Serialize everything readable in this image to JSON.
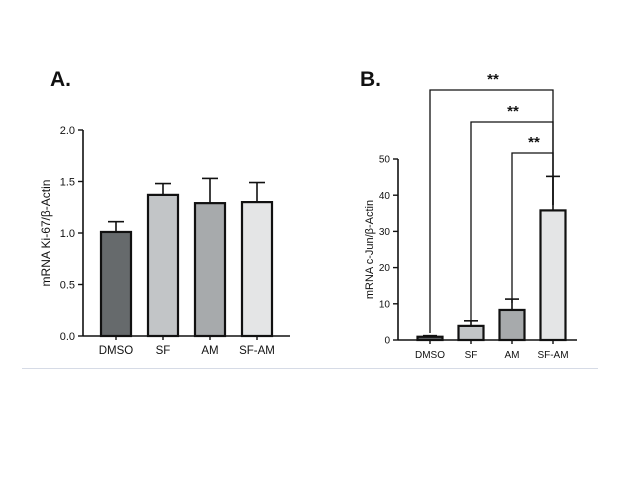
{
  "figure": {
    "panel_a_letter": "A.",
    "panel_b_letter": "B."
  },
  "chart_data": [
    {
      "type": "bar",
      "panel": "A.",
      "categories": [
        "DMSO",
        "SF",
        "AM",
        "SF-AM"
      ],
      "values": [
        1.01,
        1.37,
        1.29,
        1.3
      ],
      "errors": [
        0.1,
        0.11,
        0.24,
        0.19
      ],
      "colors": [
        "#666a6c",
        "#c2c5c7",
        "#a7aaac",
        "#e4e5e6"
      ],
      "xlabel": "",
      "ylabel": "mRNA Ki-67/β-Actin",
      "ylim": [
        0,
        2.0
      ],
      "yticks": [
        0.0,
        0.5,
        1.0,
        1.5,
        2.0
      ],
      "ytick_labels": [
        "0.0",
        "0.5",
        "1.0",
        "1.5",
        "2.0"
      ],
      "grid": false,
      "legend": "none"
    },
    {
      "type": "bar",
      "panel": "B.",
      "categories": [
        "DMSO",
        "SF",
        "AM",
        "SF-AM"
      ],
      "values": [
        0.9,
        3.9,
        8.3,
        35.8
      ],
      "errors": [
        0.3,
        1.4,
        3.0,
        9.4
      ],
      "colors": [
        "#666a6c",
        "#c2c5c7",
        "#a7aaac",
        "#e4e5e6"
      ],
      "xlabel": "",
      "ylabel": "mRNA c-Jun/β-Actin",
      "ylim": [
        0,
        50
      ],
      "yticks": [
        0,
        10,
        20,
        30,
        40,
        50
      ],
      "ytick_labels": [
        "0",
        "10",
        "20",
        "30",
        "40",
        "50"
      ],
      "grid": false,
      "legend": "none",
      "annotations": [
        {
          "from": "DMSO",
          "to": "SF-AM",
          "text": "**"
        },
        {
          "from": "SF",
          "to": "SF-AM",
          "text": "**"
        },
        {
          "from": "AM",
          "to": "SF-AM",
          "text": "**"
        }
      ]
    }
  ]
}
